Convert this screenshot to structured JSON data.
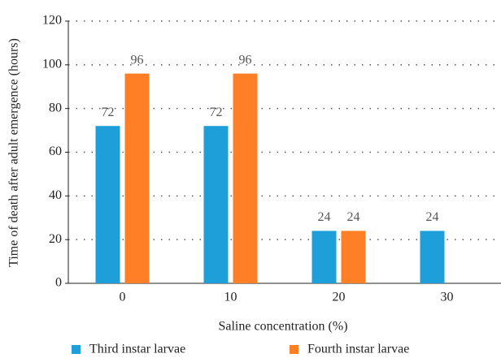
{
  "chart_data": {
    "type": "bar",
    "xlabel": "Saline concentration (%)",
    "ylabel": "Time of death after adult emergence (hours)",
    "categories": [
      "0",
      "10",
      "20",
      "30"
    ],
    "series": [
      {
        "name": "Third instar larvae",
        "color": "#1f9fd9",
        "values": [
          72,
          72,
          24,
          24
        ]
      },
      {
        "name": "Fourth instar larvae",
        "color": "#ff7f27",
        "values": [
          96,
          96,
          24,
          null
        ]
      }
    ],
    "ylim": [
      0,
      120
    ],
    "yticks": [
      0,
      20,
      40,
      60,
      80,
      100,
      120
    ],
    "grid": true,
    "legend": "bottom"
  }
}
